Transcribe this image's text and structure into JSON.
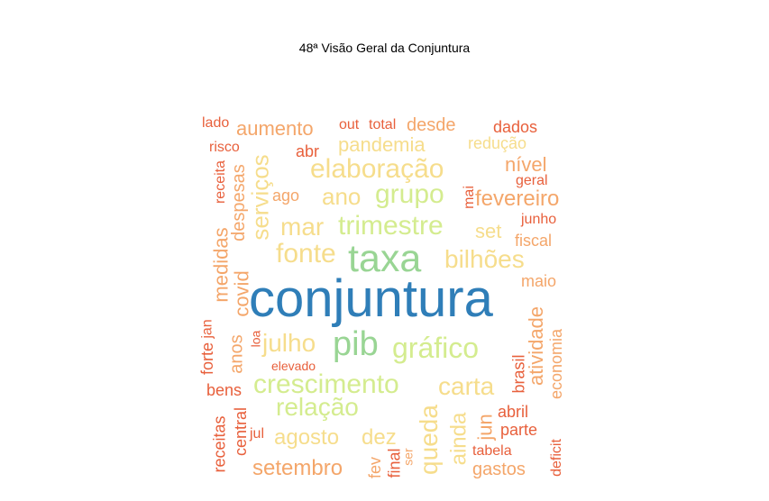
{
  "title": "48ª Visão Geral da Conjuntura",
  "colors": {
    "dark_blue": "#2f7eb8",
    "green": "#99d594",
    "light_green": "#d4ec8f",
    "yellow": "#f6dd8c",
    "orange": "#f4a66a",
    "red_orange": "#e8603c"
  },
  "words": [
    {
      "text": "conjuntura",
      "color": "#2f7eb8"
    },
    {
      "text": "taxa",
      "color": "#99d594"
    },
    {
      "text": "pib",
      "color": "#99d594"
    },
    {
      "text": "gráfico",
      "color": "#d4ec8f"
    },
    {
      "text": "crescimento",
      "color": "#d4ec8f"
    },
    {
      "text": "carta",
      "color": "#f6dd8c"
    },
    {
      "text": "relação",
      "color": "#d4ec8f"
    },
    {
      "text": "trimestre",
      "color": "#d4ec8f"
    },
    {
      "text": "grupo",
      "color": "#d4ec8f"
    },
    {
      "text": "elaboração",
      "color": "#f6dd8c"
    },
    {
      "text": "fonte",
      "color": "#f6dd8c"
    },
    {
      "text": "bilhões",
      "color": "#f6dd8c"
    },
    {
      "text": "ano",
      "color": "#f6dd8c"
    },
    {
      "text": "mar",
      "color": "#f6dd8c"
    },
    {
      "text": "julho",
      "color": "#f6dd8c"
    },
    {
      "text": "pandemia",
      "color": "#f6dd8c"
    },
    {
      "text": "aumento",
      "color": "#f4a66a"
    },
    {
      "text": "serviços",
      "color": "#f6dd8c"
    },
    {
      "text": "queda",
      "color": "#f6dd8c"
    },
    {
      "text": "ainda",
      "color": "#f6dd8c"
    },
    {
      "text": "agosto",
      "color": "#f6dd8c"
    },
    {
      "text": "setembro",
      "color": "#f4a66a"
    },
    {
      "text": "dez",
      "color": "#f6dd8c"
    },
    {
      "text": "fevereiro",
      "color": "#f4a66a"
    },
    {
      "text": "nível",
      "color": "#f4a66a"
    },
    {
      "text": "set",
      "color": "#f6dd8c"
    },
    {
      "text": "desde",
      "color": "#f4a66a"
    },
    {
      "text": "redução",
      "color": "#f6dd8c"
    },
    {
      "text": "medidas",
      "color": "#f4a66a"
    },
    {
      "text": "despesas",
      "color": "#f4a66a"
    },
    {
      "text": "covid",
      "color": "#f4a66a"
    },
    {
      "text": "anos",
      "color": "#f4a66a"
    },
    {
      "text": "atividade",
      "color": "#f4a66a"
    },
    {
      "text": "economia",
      "color": "#f4a66a"
    },
    {
      "text": "maio",
      "color": "#f4a66a"
    },
    {
      "text": "fiscal",
      "color": "#f4a66a"
    },
    {
      "text": "jun",
      "color": "#f4a66a"
    },
    {
      "text": "gastos",
      "color": "#f4a66a"
    },
    {
      "text": "dados",
      "color": "#e8603c"
    },
    {
      "text": "geral",
      "color": "#e8603c"
    },
    {
      "text": "junho",
      "color": "#e8603c"
    },
    {
      "text": "mai",
      "color": "#e8603c"
    },
    {
      "text": "ago",
      "color": "#f4a66a"
    },
    {
      "text": "abr",
      "color": "#e8603c"
    },
    {
      "text": "out",
      "color": "#e8603c"
    },
    {
      "text": "total",
      "color": "#e8603c"
    },
    {
      "text": "lado",
      "color": "#e8603c"
    },
    {
      "text": "risco",
      "color": "#e8603c"
    },
    {
      "text": "receita",
      "color": "#e8603c"
    },
    {
      "text": "jan",
      "color": "#e8603c"
    },
    {
      "text": "forte",
      "color": "#e8603c"
    },
    {
      "text": "bens",
      "color": "#e8603c"
    },
    {
      "text": "receitas",
      "color": "#e8603c"
    },
    {
      "text": "central",
      "color": "#e8603c"
    },
    {
      "text": "jul",
      "color": "#e8603c"
    },
    {
      "text": "loa",
      "color": "#e8603c"
    },
    {
      "text": "elevado",
      "color": "#e8603c"
    },
    {
      "text": "fev",
      "color": "#f4a66a"
    },
    {
      "text": "final",
      "color": "#e8603c"
    },
    {
      "text": "ser",
      "color": "#f4a66a"
    },
    {
      "text": "brasil",
      "color": "#e8603c"
    },
    {
      "text": "abril",
      "color": "#e8603c"
    },
    {
      "text": "parte",
      "color": "#e8603c"
    },
    {
      "text": "tabela",
      "color": "#e8603c"
    },
    {
      "text": "deficit",
      "color": "#e8603c"
    }
  ]
}
